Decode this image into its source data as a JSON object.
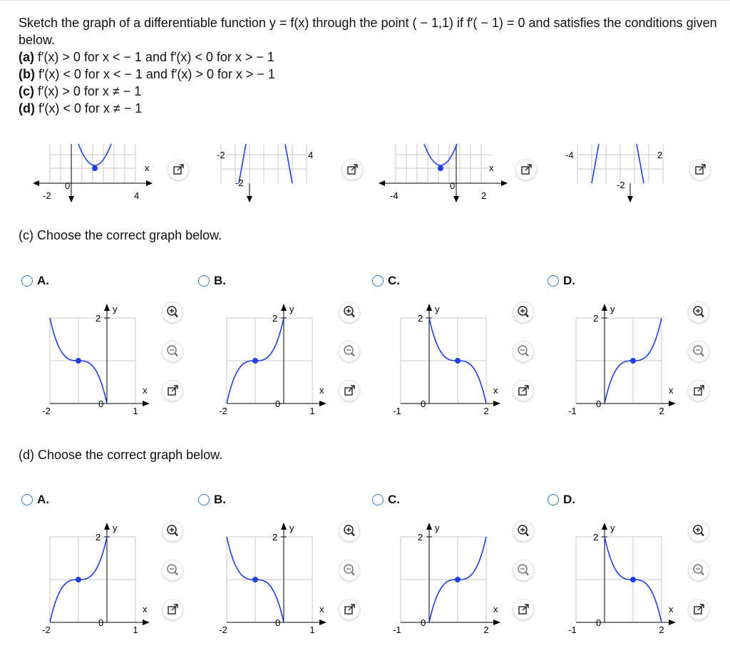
{
  "problem": {
    "intro": "Sketch the graph of a differentiable function y = f(x) through the point ( − 1,1) if f′( − 1) = 0 and satisfies the conditions given below.",
    "conditions": [
      {
        "label": "(a)",
        "text": " f′(x) > 0 for x <  − 1 and f′(x) < 0 for x >  − 1"
      },
      {
        "label": "(b)",
        "text": " f′(x) < 0 for x <  − 1 and f′(x) > 0 for x >  − 1"
      },
      {
        "label": "(c)",
        "text": " f′(x) > 0 for x ≠  − 1"
      },
      {
        "label": "(d)",
        "text": " f′(x) < 0 for x ≠  − 1"
      }
    ]
  },
  "strip_graphs": [
    {
      "ticks": [
        "-2",
        "4"
      ],
      "x_label": "x",
      "zero": "0"
    },
    {
      "ticks": [
        "-2",
        "4"
      ],
      "y_tick": "-2"
    },
    {
      "ticks": [
        "-4",
        "2"
      ],
      "x_label": "x",
      "zero": "0"
    },
    {
      "ticks": [
        "-4",
        "2"
      ],
      "y_tick": "-2"
    }
  ],
  "parts": [
    {
      "heading": "(c) Choose the correct graph below.",
      "options": [
        {
          "letter": "A.",
          "shape": "dec",
          "x_left": "-2",
          "x_right": "1",
          "y_tick": "2",
          "x_axis": "x",
          "y_axis": "y",
          "zero": "0",
          "point": [
            -1,
            1
          ],
          "selected": false
        },
        {
          "letter": "B.",
          "shape": "inc",
          "x_left": "-2",
          "x_right": "1",
          "y_tick": "2",
          "x_axis": "x",
          "y_axis": "y",
          "zero": "0",
          "point": [
            -1,
            1
          ],
          "selected": false
        },
        {
          "letter": "C.",
          "shape": "dec",
          "x_left": "-1",
          "x_right": "2",
          "y_tick": "2",
          "x_axis": "x",
          "y_axis": "y",
          "zero": "0",
          "point": [
            1,
            1
          ],
          "selected": false
        },
        {
          "letter": "D.",
          "shape": "inc",
          "x_left": "-1",
          "x_right": "2",
          "y_tick": "2",
          "x_axis": "x",
          "y_axis": "y",
          "zero": "0",
          "point": [
            1,
            1
          ],
          "selected": false
        }
      ]
    },
    {
      "heading": "(d) Choose the correct graph below.",
      "options": [
        {
          "letter": "A.",
          "shape": "inc",
          "x_left": "-2",
          "x_right": "1",
          "y_tick": "2",
          "x_axis": "x",
          "y_axis": "y",
          "zero": "0",
          "point": [
            -1,
            1
          ],
          "selected": false
        },
        {
          "letter": "B.",
          "shape": "dec",
          "x_left": "-2",
          "x_right": "1",
          "y_tick": "2",
          "x_axis": "x",
          "y_axis": "y",
          "zero": "0",
          "point": [
            -1,
            1
          ],
          "selected": false
        },
        {
          "letter": "C.",
          "shape": "inc",
          "x_left": "-1",
          "x_right": "2",
          "y_tick": "2",
          "x_axis": "x",
          "y_axis": "y",
          "zero": "0",
          "point": [
            1,
            1
          ],
          "selected": false
        },
        {
          "letter": "D.",
          "shape": "dec",
          "x_left": "-1",
          "x_right": "2",
          "y_tick": "2",
          "x_axis": "x",
          "y_axis": "y",
          "zero": "0",
          "point": [
            1,
            1
          ],
          "selected": false
        }
      ]
    }
  ],
  "colors": {
    "curve": "#1f3fe0",
    "radio": "#3a78c2",
    "grid": "#c8c8c8",
    "axis": "#000000"
  },
  "icons": [
    "zoom-in-icon",
    "zoom-out-icon",
    "expand-icon"
  ]
}
